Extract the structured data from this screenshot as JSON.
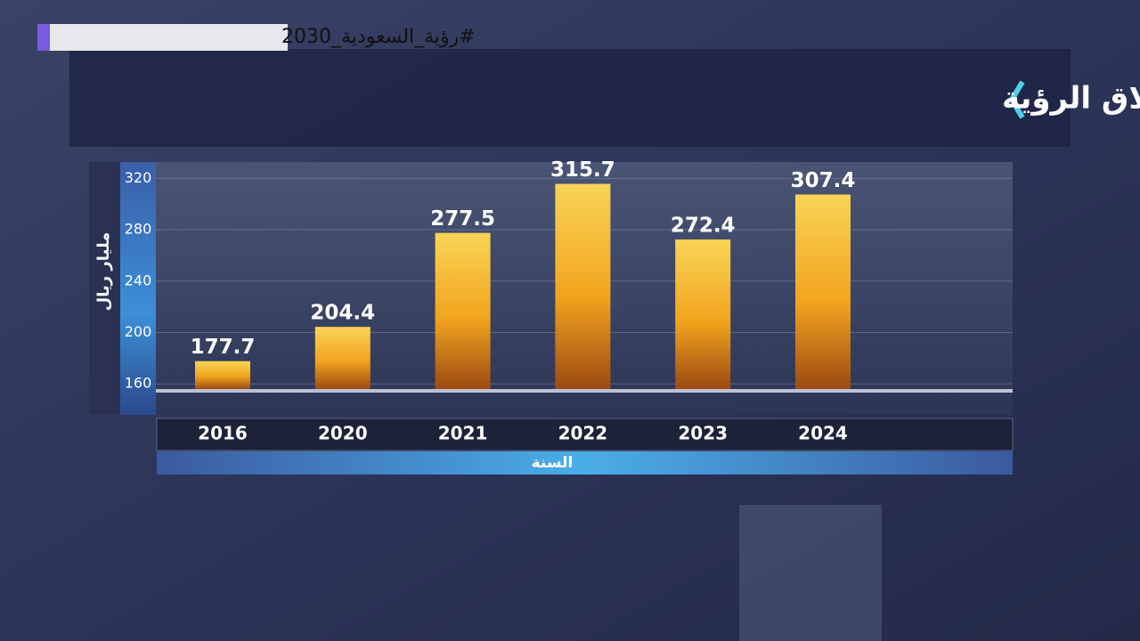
{
  "hashtag": "#رؤية_السعودية_2030",
  "chart_data": {
    "type": "bar",
    "title": "الصادرات غير النفطية السلعية منذ إطلاق الرؤية",
    "y_label": "مليار ريال",
    "x_label": "السنة",
    "categories": [
      "2016",
      "2020",
      "2021",
      "2022",
      "2023",
      "2024"
    ],
    "values": [
      177.7,
      204.4,
      277.5,
      315.7,
      272.4,
      307.4
    ],
    "color": "#f2a41e",
    "ylim": [
      156,
      332
    ],
    "yticks": [
      160,
      200,
      240,
      280,
      320
    ],
    "grid": true
  }
}
